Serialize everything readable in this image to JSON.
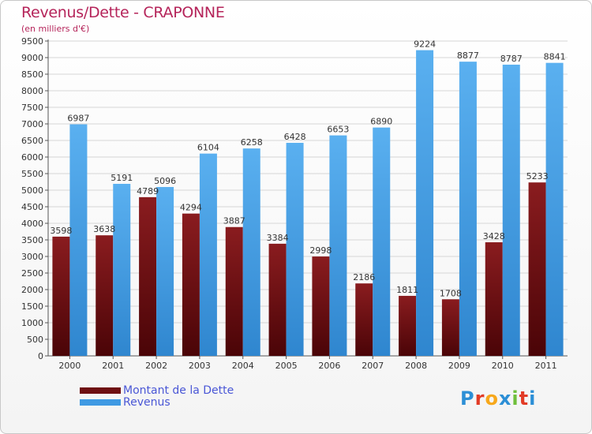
{
  "header": {
    "title": "Revenus/Dette - CRAPONNE",
    "subtitle": "(en milliers d'€)"
  },
  "legend": {
    "items": [
      {
        "label": "Montant de la Dette",
        "color": "#6e0f12"
      },
      {
        "label": "Revenus",
        "color": "#3f9ae3"
      }
    ]
  },
  "logo": {
    "letters": [
      "P",
      "r",
      "o",
      "x",
      "i",
      "t",
      "i"
    ],
    "colors": [
      "#2c8fd6",
      "#e23b26",
      "#f7a81b",
      "#2c8fd6",
      "#6fbf3b",
      "#e23b26",
      "#2c8fd6"
    ]
  },
  "chart_data": {
    "type": "bar",
    "title": "Revenus/Dette - CRAPONNE",
    "ylabel": "(en milliers d'€)",
    "categories": [
      "2000",
      "2001",
      "2002",
      "2003",
      "2004",
      "2005",
      "2006",
      "2007",
      "2008",
      "2009",
      "2010",
      "2011"
    ],
    "series": [
      {
        "name": "Montant de la Dette",
        "color": "#6e0f12",
        "values": [
          3598,
          3638,
          4789,
          4294,
          3887,
          3384,
          2998,
          2186,
          1811,
          1708,
          3428,
          5233
        ]
      },
      {
        "name": "Revenus",
        "color": "#3f9ae3",
        "values": [
          6987,
          5191,
          5096,
          6104,
          6258,
          6428,
          6653,
          6890,
          9224,
          8877,
          8787,
          8841
        ]
      }
    ],
    "ylim": [
      0,
      9500
    ],
    "yticks": [
      0,
      500,
      1000,
      1500,
      2000,
      2500,
      3000,
      3500,
      4000,
      4500,
      5000,
      5500,
      6000,
      6500,
      7000,
      7500,
      8000,
      8500,
      9000,
      9500
    ],
    "grid": true,
    "legend_position": "bottom-left"
  }
}
